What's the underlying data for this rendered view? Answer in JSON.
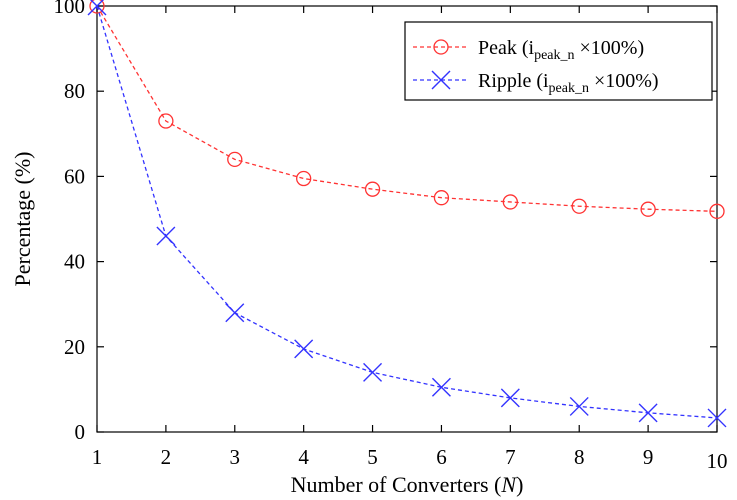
{
  "chart_data": {
    "type": "line",
    "xlabel_main": "Number of Converters (",
    "xlabel_var": "N",
    "xlabel_end": ")",
    "ylabel": "Percentage (%)",
    "xlim": [
      1,
      10
    ],
    "ylim": [
      0,
      100
    ],
    "x_ticks": [
      1,
      2,
      3,
      4,
      5,
      6,
      7,
      8,
      9,
      10
    ],
    "y_ticks": [
      0,
      20,
      40,
      60,
      80,
      100
    ],
    "grid": false,
    "legend_position": "top-right",
    "x": [
      1,
      2,
      3,
      4,
      5,
      6,
      7,
      8,
      9,
      10
    ],
    "series": [
      {
        "name_main": "Peak (i",
        "name_sub": "peak_n",
        "name_end": " ×100%)",
        "color": "#ff3333",
        "marker": "circle",
        "values": [
          100,
          73,
          64,
          59.5,
          57,
          55,
          54,
          53,
          52.3,
          51.8
        ]
      },
      {
        "name_main": "Ripple (i",
        "name_sub": "peak_n",
        "name_end": " ×100%)",
        "color": "#3333ff",
        "marker": "x",
        "values": [
          100,
          46,
          28,
          19.5,
          14,
          10.5,
          8,
          6,
          4.5,
          3.3
        ]
      }
    ]
  }
}
